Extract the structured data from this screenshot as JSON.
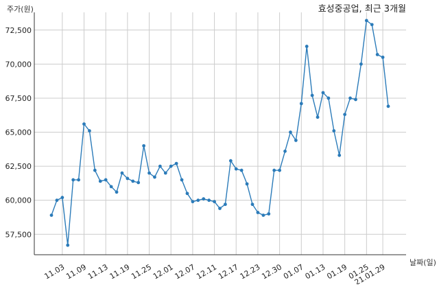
{
  "chart_data": {
    "type": "line",
    "title": "효성중공업, 최근 3개월",
    "xlabel": "날짜(일)",
    "ylabel": "주가(원)",
    "ylim": [
      56000,
      73800
    ],
    "yticks": [
      57500,
      60000,
      62500,
      65000,
      67500,
      70000,
      72500
    ],
    "ytick_labels": [
      "57,500",
      "60,000",
      "62,500",
      "65,000",
      "67,500",
      "70,000",
      "72,500"
    ],
    "xtick_labels": [
      "11.03",
      "11.09",
      "11.13",
      "11.19",
      "11.25",
      "12.01",
      "12.07",
      "12.11",
      "12.17",
      "12.23",
      "12.30",
      "01.07",
      "01.13",
      "01.19",
      "01.25",
      "21.01.29"
    ],
    "xtick_index": [
      2,
      6,
      10,
      14,
      18,
      22,
      26,
      30,
      34,
      38,
      42,
      46,
      50,
      54,
      58,
      61
    ],
    "grid": true,
    "color": "#2b7bb9",
    "series": [
      {
        "values": [
          58900,
          60000,
          60200,
          56700,
          61500,
          61500,
          65600,
          65100,
          62200,
          61400,
          61500,
          61000,
          60600,
          62000,
          61600,
          61400,
          61300,
          64000,
          62000,
          61700,
          62500,
          62000,
          62500,
          62700,
          61500,
          60500,
          59900,
          60000,
          60100,
          60000,
          59900,
          59400,
          59700,
          62900,
          62300,
          62200,
          61200,
          59700,
          59100,
          58900,
          59000,
          62200,
          62200,
          63600,
          65000,
          64400,
          67100,
          71300,
          67700,
          66100,
          67900,
          67500,
          65100,
          63300,
          66300,
          67500,
          67400,
          70000,
          73200,
          72900,
          70700,
          70500,
          66900
        ]
      }
    ]
  }
}
